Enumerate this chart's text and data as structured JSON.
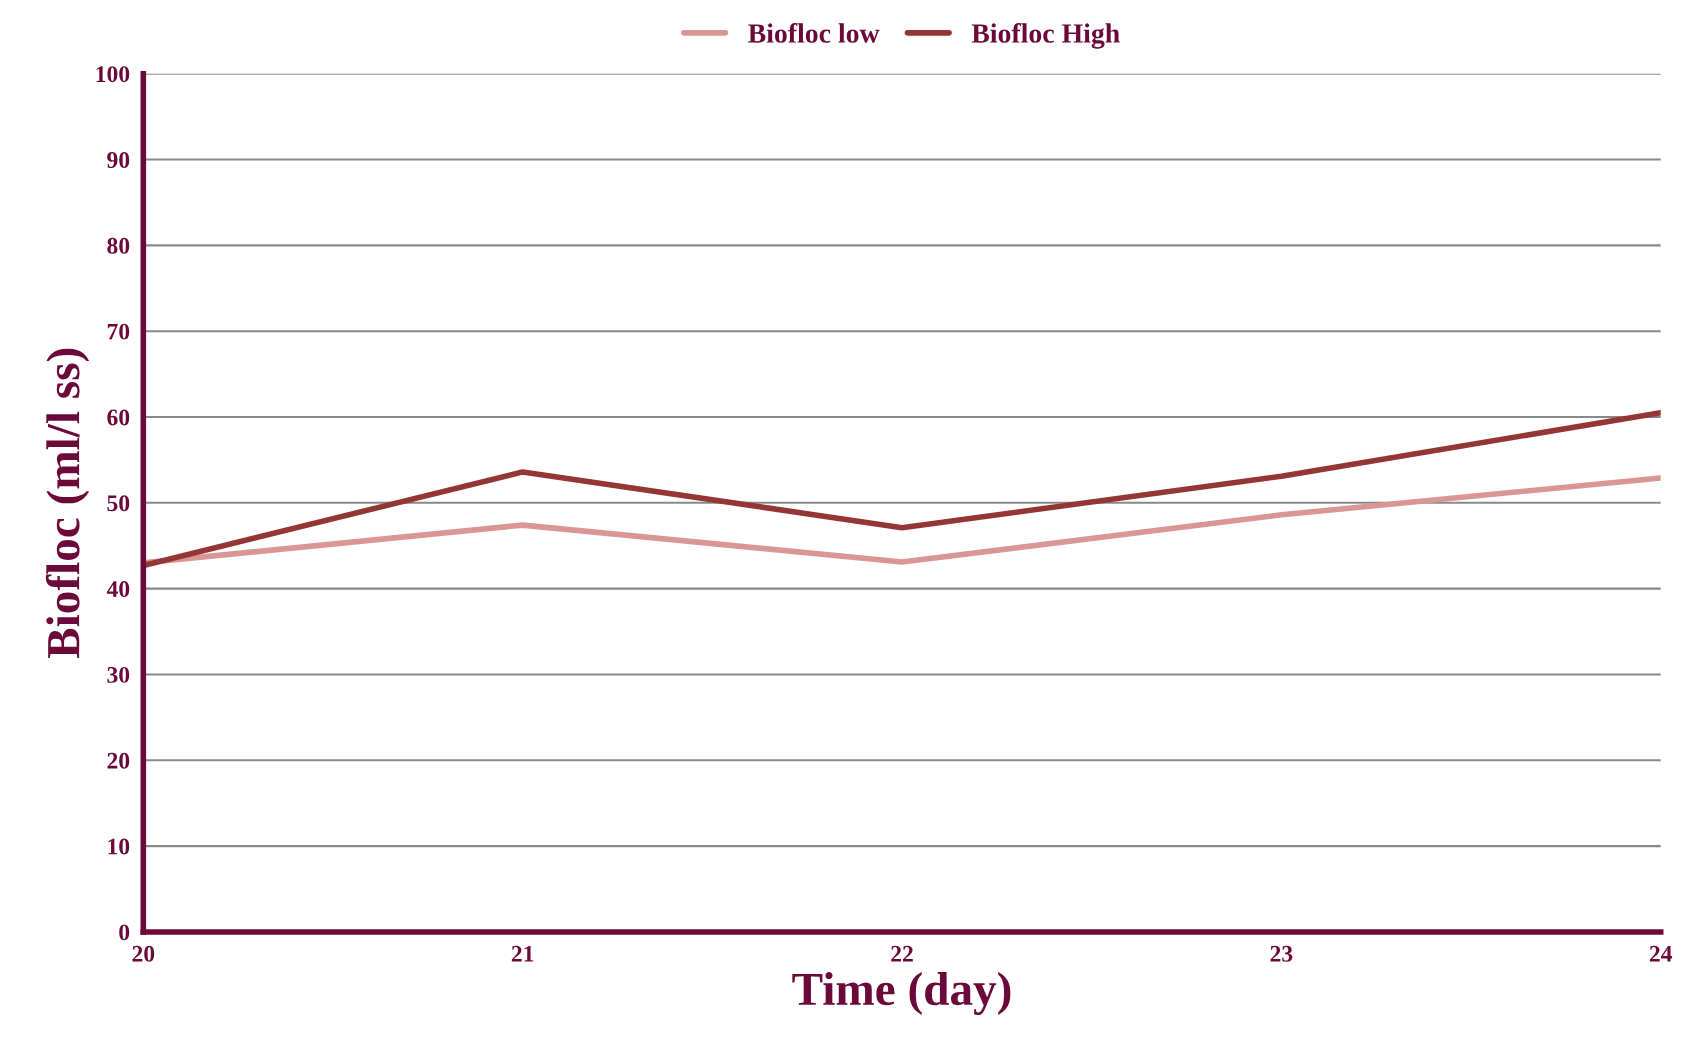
{
  "chart_data": {
    "type": "line",
    "xlabel": "Time (day)",
    "ylabel": "Biofloc (ml/l ss)",
    "x": [
      20,
      21,
      22,
      23,
      24
    ],
    "series": [
      {
        "name": "Biofloc low",
        "color": "#d99694",
        "values": [
          43.0,
          47.4,
          43.1,
          48.6,
          52.9
        ]
      },
      {
        "name": "Biofloc High",
        "color": "#943634",
        "values": [
          42.7,
          53.6,
          47.1,
          53.1,
          60.5
        ]
      }
    ],
    "xlim": [
      20,
      24
    ],
    "xticks": [
      20,
      21,
      22,
      23,
      24
    ],
    "ylim": [
      0,
      100
    ],
    "yticks": [
      0,
      10,
      20,
      30,
      40,
      50,
      60,
      70,
      80,
      90,
      100
    ],
    "grid": "y",
    "legend": "top",
    "marker": "none",
    "line_style": "solid"
  }
}
